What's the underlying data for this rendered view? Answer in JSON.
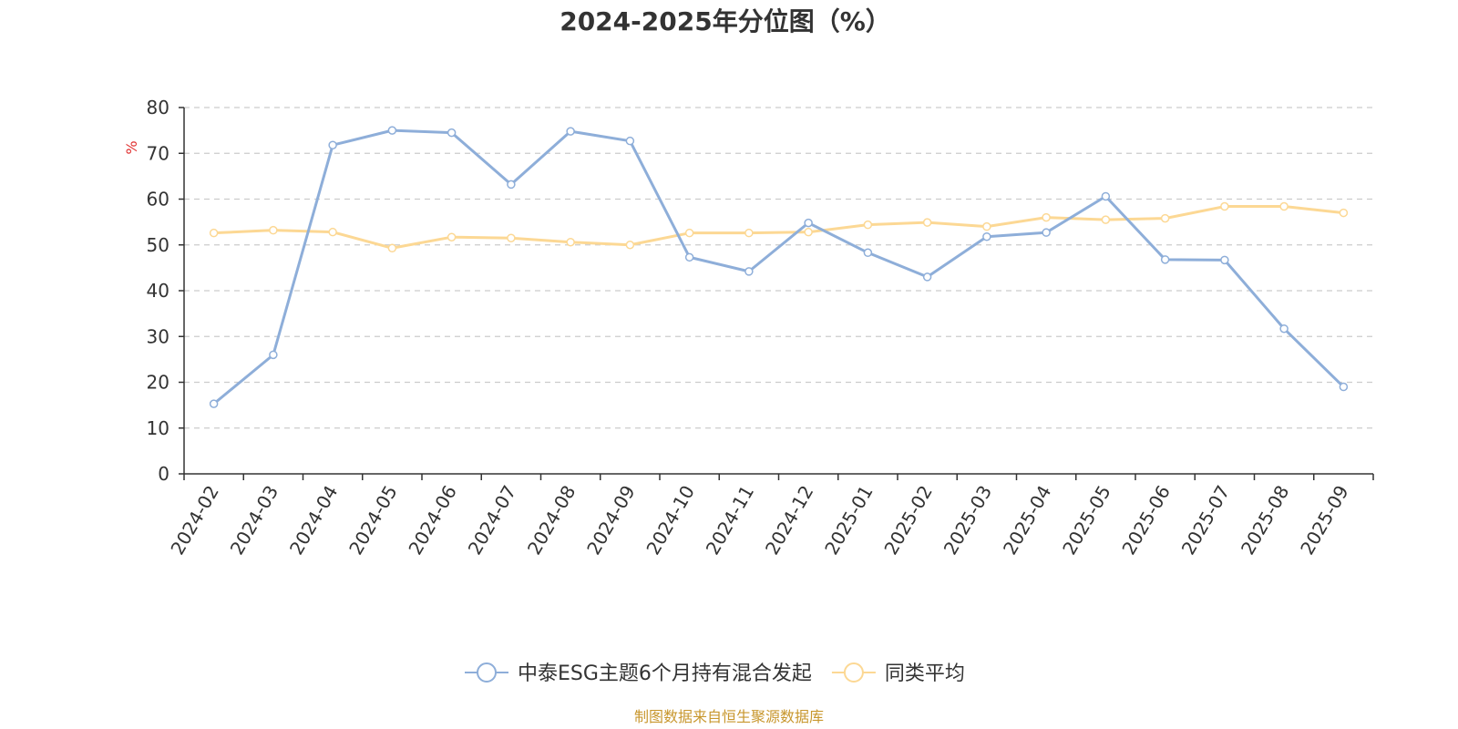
{
  "chart_data": {
    "type": "line",
    "title": "2024-2025年分位图（%）",
    "ylabel": "%",
    "ylim": [
      0,
      80
    ],
    "yticks": [
      "0",
      "10",
      "20",
      "30",
      "40",
      "50",
      "60",
      "70",
      "80"
    ],
    "grid": "horizontal dashed",
    "legend_position": "bottom-center",
    "categories": [
      "2024-02",
      "2024-03",
      "2024-04",
      "2024-05",
      "2024-06",
      "2024-07",
      "2024-08",
      "2024-09",
      "2024-10",
      "2024-11",
      "2024-12",
      "2025-01",
      "2025-02",
      "2025-03",
      "2025-04",
      "2025-05",
      "2025-06",
      "2025-07",
      "2025-08",
      "2025-09"
    ],
    "series": [
      {
        "name": "中泰ESG主题6个月持有混合发起",
        "color": "#8eaed9",
        "values": [
          15.3,
          26.0,
          71.8,
          75.0,
          74.5,
          63.2,
          74.8,
          72.7,
          47.3,
          44.2,
          54.8,
          48.3,
          43.0,
          51.8,
          52.7,
          60.6,
          46.8,
          46.7,
          31.7,
          19.0
        ]
      },
      {
        "name": "同类平均",
        "color": "#fcd894",
        "values": [
          52.6,
          53.2,
          52.8,
          49.3,
          51.7,
          51.5,
          50.6,
          50.0,
          52.6,
          52.6,
          52.8,
          54.4,
          54.9,
          54.0,
          56.0,
          55.5,
          55.8,
          58.4,
          58.4,
          57.0
        ]
      }
    ]
  },
  "source": {
    "text": "制图数据来自恒生聚源数据库",
    "color": "#c8972e"
  },
  "colors": {
    "ylabel": "#e03030",
    "grid": "#cccccc",
    "axis": "#333333"
  }
}
